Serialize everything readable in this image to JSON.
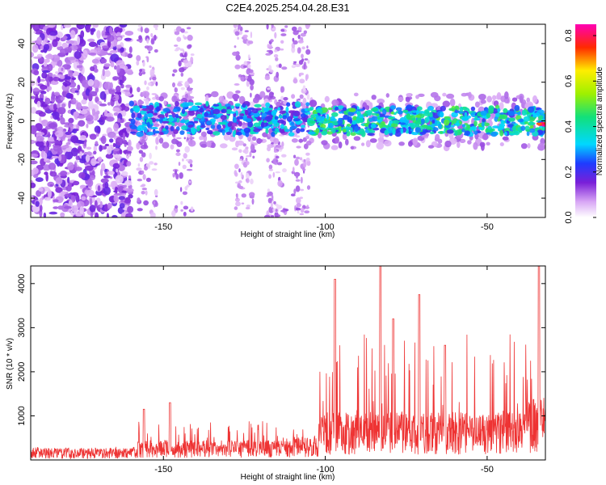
{
  "title": "C2E4.2025.254.04.28.E31",
  "colors": {
    "line": "#ee3333",
    "frame": "#000000",
    "background": "#ffffff"
  },
  "chart_data": [
    {
      "type": "heatmap",
      "title": "C2E4.2025.254.04.28.E31",
      "xlabel": "Height of straight line (km)",
      "ylabel": "Frequency (Hz)",
      "xlim": [
        -191,
        -32
      ],
      "ylim": [
        -50,
        50
      ],
      "x_ticks": [
        -150,
        -100,
        -50
      ],
      "y_ticks": [
        -40,
        -20,
        0,
        20,
        40
      ],
      "grid": false,
      "colorbar": {
        "label": "Normalized spectral amplitude",
        "range": [
          0.0,
          0.85
        ],
        "ticks": [
          0.0,
          0.2,
          0.4,
          0.6,
          0.8
        ],
        "colormap": "white-violet-blue-cyan-green-yellow-red-magenta"
      },
      "description_regions": [
        {
          "x_range": [
            -191,
            -160
          ],
          "y_range": [
            -50,
            50
          ],
          "amplitude": [
            0.05,
            0.2
          ]
        },
        {
          "x_range": [
            -160,
            -105
          ],
          "y_range": [
            -6,
            8
          ],
          "amplitude": [
            0.15,
            0.45
          ]
        },
        {
          "x_range": [
            -105,
            -35
          ],
          "y_range": [
            -8,
            8
          ],
          "amplitude": [
            0.2,
            0.55
          ]
        },
        {
          "x_range": [
            -35,
            -32
          ],
          "y_range": [
            -4,
            -1
          ],
          "amplitude": [
            0.8,
            0.85
          ]
        }
      ]
    },
    {
      "type": "line",
      "xlabel": "Height of straight line (km)",
      "ylabel": "SNR (10 * v/v)",
      "xlim": [
        -191,
        -32
      ],
      "ylim": [
        0,
        4400
      ],
      "x_ticks": [
        -150,
        -100,
        -50
      ],
      "y_ticks": [
        1000,
        2000,
        3000,
        4000
      ],
      "grid": false,
      "envelope": [
        {
          "x_range": [
            -191,
            -158
          ],
          "baseline": 150,
          "peak": 400
        },
        {
          "x_range": [
            -158,
            -110
          ],
          "baseline": 250,
          "peak": 1300
        },
        {
          "x_range": [
            -110,
            -102
          ],
          "baseline": 300,
          "peak": 1000
        },
        {
          "x_range": [
            -102,
            -38
          ],
          "baseline": 600,
          "peak": 4400
        },
        {
          "x_range": [
            -38,
            -32
          ],
          "baseline": 800,
          "peak": 4400
        }
      ],
      "peaks": [
        {
          "x": -156,
          "y": 1150
        },
        {
          "x": -148,
          "y": 1300
        },
        {
          "x": -97,
          "y": 4100
        },
        {
          "x": -83,
          "y": 4400
        },
        {
          "x": -79,
          "y": 3200
        },
        {
          "x": -71,
          "y": 3750
        },
        {
          "x": -63,
          "y": 2600
        },
        {
          "x": -34,
          "y": 4400
        }
      ]
    }
  ]
}
